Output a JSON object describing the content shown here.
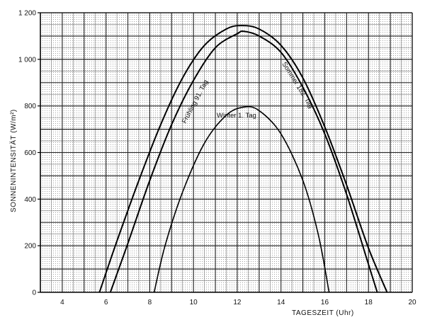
{
  "chart_data": {
    "type": "line",
    "xlabel": "TAGESZEIT (Uhr)",
    "ylabel": "SONNENINTENSITÄT (W/m²)",
    "xlim": [
      3,
      20
    ],
    "ylim": [
      0,
      1200
    ],
    "x_ticks": [
      4,
      6,
      8,
      10,
      12,
      14,
      16,
      18,
      20
    ],
    "y_ticks": [
      0,
      200,
      400,
      600,
      800,
      1000,
      1200
    ],
    "y_tick_labels": [
      "0",
      "200",
      "400",
      "600",
      "800",
      "1 000",
      "1 200"
    ],
    "grid": true,
    "series": [
      {
        "name": "Sommer 182. Tag",
        "x": [
          5.7,
          6.5,
          7.5,
          8.5,
          9.5,
          10.5,
          11.5,
          12.2,
          13.0,
          14.0,
          15.0,
          16.0,
          17.0,
          18.0,
          18.85
        ],
        "y": [
          0,
          220,
          480,
          720,
          920,
          1060,
          1130,
          1145,
          1130,
          1060,
          920,
          710,
          460,
          190,
          0
        ]
      },
      {
        "name": "Frühling 91. Tag",
        "x": [
          6.2,
          7.0,
          8.0,
          9.0,
          10.0,
          11.0,
          12.0,
          12.3,
          13.0,
          14.0,
          15.0,
          16.0,
          17.0,
          18.0,
          18.4
        ],
        "y": [
          0,
          210,
          480,
          720,
          910,
          1050,
          1110,
          1120,
          1100,
          1030,
          880,
          680,
          420,
          120,
          0
        ]
      },
      {
        "name": "Winter 1. Tag",
        "x": [
          8.2,
          8.7,
          9.5,
          10.5,
          11.5,
          12.3,
          13.0,
          14.0,
          15.0,
          15.7,
          16.2
        ],
        "y": [
          0,
          200,
          430,
          640,
          760,
          795,
          780,
          680,
          480,
          250,
          0
        ]
      }
    ]
  }
}
